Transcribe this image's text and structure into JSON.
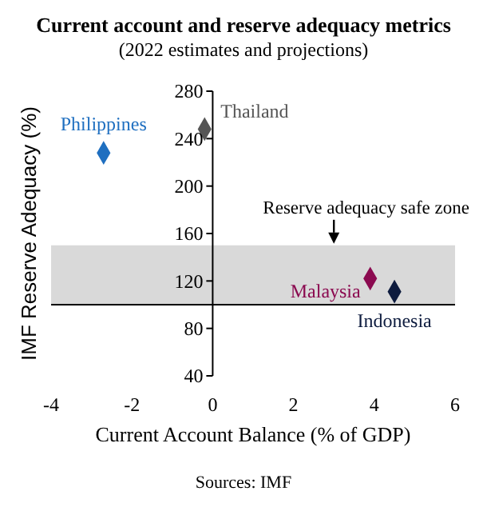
{
  "chart_data": {
    "type": "scatter",
    "title": "Current account and reserve adequacy metrics",
    "subtitle": "(2022 estimates and projections)",
    "xlabel": "Current Account Balance (% of GDP)",
    "ylabel": "IMF Reserve Adequacy (%)",
    "series": [
      {
        "name": "Philippines",
        "color": "#1f6fc0",
        "x": [
          -2.7
        ],
        "values": [
          228
        ]
      },
      {
        "name": "Thailand",
        "color": "#555555",
        "x": [
          -0.2
        ],
        "values": [
          248
        ]
      },
      {
        "name": "Malaysia",
        "color": "#8b0a50",
        "x": [
          3.9
        ],
        "values": [
          122
        ]
      },
      {
        "name": "Indonesia",
        "color": "#0d1b3e",
        "x": [
          4.5
        ],
        "values": [
          111
        ]
      }
    ],
    "xlim": [
      -4,
      6
    ],
    "xticks": [
      -4,
      -2,
      0,
      2,
      4,
      6
    ],
    "ylim": [
      40,
      280
    ],
    "yticks": [
      40,
      80,
      120,
      160,
      200,
      240,
      280
    ],
    "marker": "diamond",
    "grid": false,
    "legend": false,
    "ref_lines": [
      {
        "axis": "y",
        "value": 100,
        "color": "#000000"
      }
    ],
    "bands": [
      {
        "axis": "y",
        "from": 100,
        "to": 150,
        "label": "Reserve adequacy safe zone",
        "color": "#d9d9d9"
      }
    ],
    "annotations": [
      "Sources: IMF"
    ]
  }
}
